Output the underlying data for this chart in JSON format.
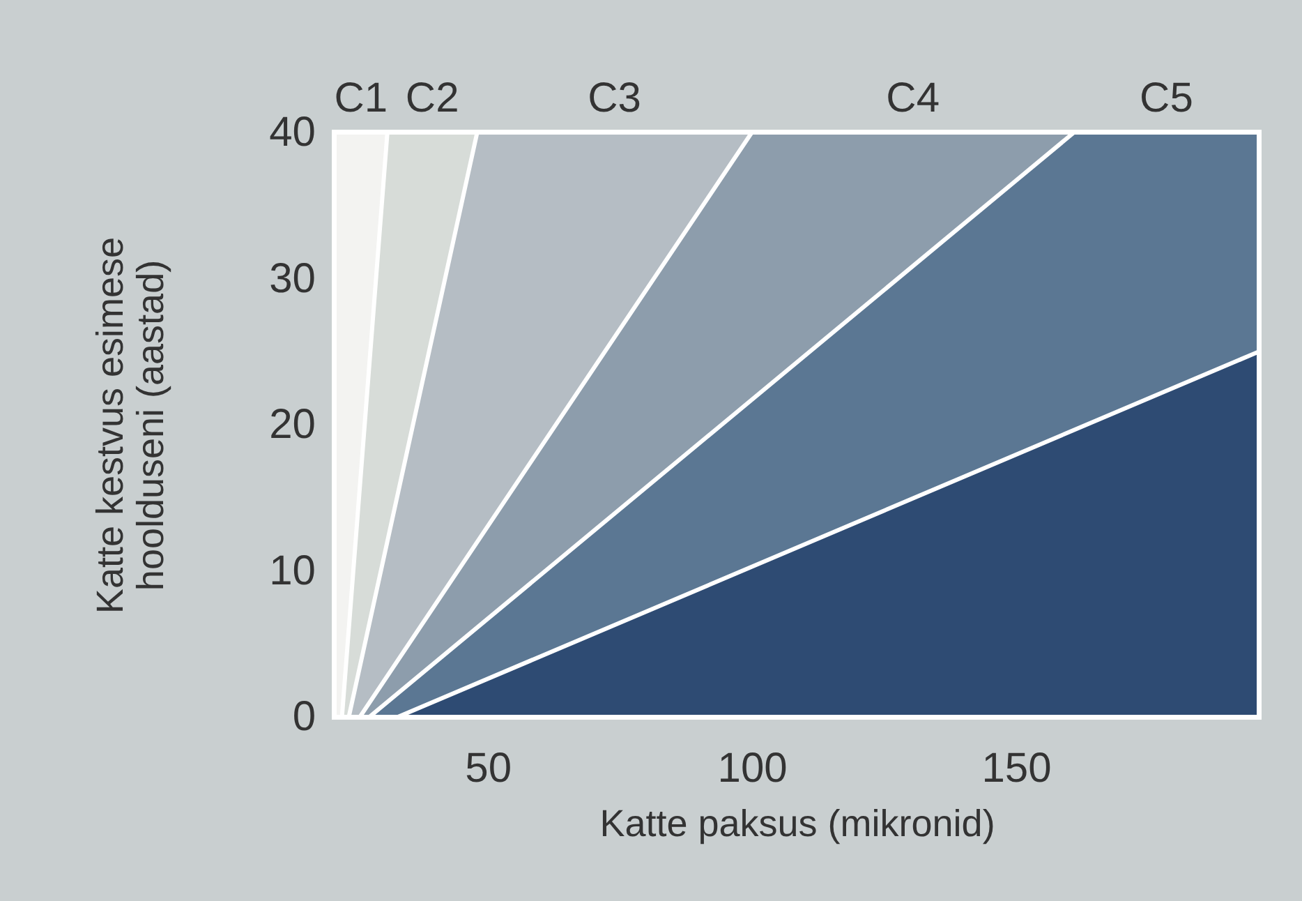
{
  "chart_data": {
    "type": "area",
    "xlabel": "Katte paksus (mikronid)",
    "ylabel": "Katte kestvus esimese\nhoolduseni (aastad)",
    "xlim": [
      21,
      196
    ],
    "xticks": [
      50,
      100,
      150
    ],
    "ylim": [
      0,
      40
    ],
    "yticks": [
      0,
      10,
      20,
      30,
      40
    ],
    "grid": false,
    "series": [
      {
        "name": "C1",
        "color": "#f3f3f1",
        "x": [
          21,
          31
        ],
        "values": [
          40,
          40
        ]
      },
      {
        "name": "C2",
        "color": "#d7dcd8",
        "x": [
          22.4,
          31,
          48
        ],
        "values": [
          0,
          40,
          40
        ]
      },
      {
        "name": "C3",
        "color": "#b5bdc4",
        "x": [
          23.7,
          48,
          100
        ],
        "values": [
          0,
          40,
          40
        ]
      },
      {
        "name": "C4",
        "color": "#8d9dac",
        "x": [
          25.8,
          100,
          161
        ],
        "values": [
          0,
          40,
          40
        ]
      },
      {
        "name": "C5",
        "color": "#5b7793",
        "x": [
          27.6,
          161,
          196
        ],
        "values": [
          0,
          40,
          40
        ]
      },
      {
        "color": "#2e4b73",
        "x": [
          33,
          196
        ],
        "values": [
          0,
          25
        ]
      }
    ]
  }
}
